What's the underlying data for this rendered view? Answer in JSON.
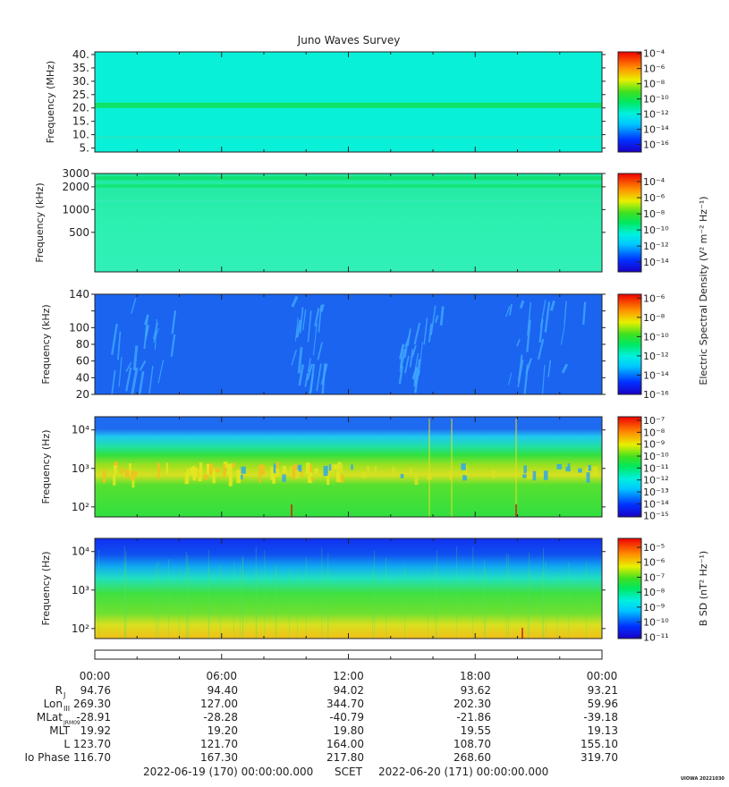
{
  "figure": {
    "title": "Juno Waves Survey",
    "time_ticks": [
      "00:00",
      "06:00",
      "12:00",
      "18:00",
      "00:00"
    ],
    "ephemeris": {
      "rows": [
        {
          "label": "R",
          "sub": "J",
          "values": [
            "94.76",
            "94.40",
            "94.02",
            "93.62",
            "93.21"
          ]
        },
        {
          "label": "Lon",
          "sub": "III",
          "values": [
            "269.30",
            "127.00",
            "344.70",
            "202.30",
            "59.96"
          ]
        },
        {
          "label": "MLat",
          "sub": "JRM09",
          "values": [
            "-28.91",
            "-28.28",
            "-40.79",
            "-21.86",
            "-39.18"
          ]
        },
        {
          "label": "MLT",
          "sub": "",
          "values": [
            "19.92",
            "19.20",
            "19.80",
            "19.55",
            "19.13"
          ]
        },
        {
          "label": "L",
          "sub": "",
          "values": [
            "123.70",
            "121.70",
            "164.00",
            "108.70",
            "155.10"
          ]
        },
        {
          "label": "Io Phase",
          "sub": "",
          "values": [
            "116.70",
            "167.30",
            "217.80",
            "268.60",
            "319.70"
          ]
        }
      ]
    },
    "footer": {
      "start": "2022-06-19 (170) 00:00:00.000",
      "frame": "SCET",
      "end": "2022-06-20 (171) 00:00:00.000"
    },
    "stamp": "UIOWA 20221030",
    "shared_colorbar_label": "Electric Spectral Density (V² m⁻² Hz⁻¹)"
  },
  "chart_data": [
    {
      "type": "heatmap",
      "title": "Juno Waves Survey",
      "ylabel": "Frequency (MHz)",
      "y_scale": "linear",
      "ylim": [
        3.5,
        41
      ],
      "y_ticks": [
        {
          "v": 5,
          "t": "5."
        },
        {
          "v": 10,
          "t": "10."
        },
        {
          "v": 15,
          "t": "15."
        },
        {
          "v": 20,
          "t": "20."
        },
        {
          "v": 25,
          "t": "25."
        },
        {
          "v": 30,
          "t": "30."
        },
        {
          "v": 35,
          "t": "35."
        },
        {
          "v": 40,
          "t": "40."
        }
      ],
      "base_color": "#08f0d8",
      "features": [
        {
          "kind": "band",
          "y": 21.0,
          "width": 0.35,
          "color": "#10e060"
        },
        {
          "kind": "band",
          "y": 9.0,
          "width": 0.12,
          "color": "#20e8c8"
        }
      ],
      "colorbar": {
        "exponents": [
          -4,
          -6,
          -8,
          -10,
          -12,
          -14,
          -16
        ],
        "range": [
          -17,
          -3.8
        ],
        "label": ""
      }
    },
    {
      "type": "heatmap",
      "ylabel": "Frequency (kHz)",
      "y_scale": "log",
      "ylim": [
        150,
        3000
      ],
      "y_ticks": [
        {
          "v": 500,
          "t": "500"
        },
        {
          "v": 1000,
          "t": "1000"
        },
        {
          "v": 2000,
          "t": "2000"
        },
        {
          "v": 3000,
          "t": "3000"
        }
      ],
      "base_color": "#28f0a8",
      "features": [
        {
          "kind": "band",
          "y": 2600,
          "width": 0.25,
          "color": "#10e070"
        },
        {
          "kind": "band",
          "y": 2050,
          "width": 0.2,
          "color": "#14e670"
        },
        {
          "kind": "band",
          "y": 1300,
          "width": 0.15,
          "color": "#30ecb0"
        }
      ],
      "colorbar": {
        "exponents": [
          -4,
          -6,
          -8,
          -10,
          -12,
          -14
        ],
        "range": [
          -15.2,
          -3
        ],
        "label": "Electric Spectral Density (V² m⁻² Hz⁻¹)"
      }
    },
    {
      "type": "heatmap",
      "ylabel": "Frequency (kHz)",
      "y_scale": "linear",
      "ylim": [
        20,
        140
      ],
      "y_ticks": [
        {
          "v": 20,
          "t": "20"
        },
        {
          "v": 40,
          "t": "40"
        },
        {
          "v": 60,
          "t": "60"
        },
        {
          "v": 80,
          "t": "80"
        },
        {
          "v": 100,
          "t": "100"
        },
        {
          "v": 120,
          "t": ""
        },
        {
          "v": 140,
          "t": "140"
        }
      ],
      "base_color": "#1a64f0",
      "features": [
        {
          "kind": "streaks",
          "t_ranges": [
            [
              0.0,
              4.0
            ],
            [
              9.5,
              11.0
            ],
            [
              14.5,
              16.5
            ],
            [
              19.5,
              23.5
            ]
          ],
          "color": "#40a8ff"
        }
      ],
      "colorbar": {
        "exponents": [
          -6,
          -8,
          -10,
          -12,
          -14,
          -16
        ],
        "range": [
          -16,
          -5.6
        ],
        "label": ""
      }
    },
    {
      "type": "heatmap",
      "ylabel": "Frequency (Hz)",
      "y_scale": "log",
      "ylim": [
        55,
        22000
      ],
      "y_ticks": [
        {
          "v": 100,
          "t": "10²"
        },
        {
          "v": 1000,
          "t": "10³"
        },
        {
          "v": 10000,
          "t": "10⁴"
        }
      ],
      "base_color": "#30e040",
      "features": [
        {
          "kind": "band",
          "y_low": 3000,
          "y_high": 22000,
          "color": "#1e78f0"
        },
        {
          "kind": "band",
          "y_low": 1500,
          "y_high": 3000,
          "color": "#20d8e8"
        },
        {
          "kind": "band",
          "y_low": 500,
          "y_high": 1500,
          "color": "#c8e020"
        }
      ],
      "colorbar": {
        "exponents": [
          -7,
          -8,
          -9,
          -10,
          -11,
          -12,
          -13,
          -14,
          -15
        ],
        "range": [
          -15.1,
          -6.7
        ],
        "label": ""
      }
    },
    {
      "type": "heatmap",
      "ylabel": "Frequency (Hz)",
      "y_scale": "log",
      "ylim": [
        55,
        22000
      ],
      "y_ticks": [
        {
          "v": 100,
          "t": "10²"
        },
        {
          "v": 1000,
          "t": "10³"
        },
        {
          "v": 10000,
          "t": "10⁴"
        }
      ],
      "base_color": "#40e040",
      "features": [
        {
          "kind": "band",
          "y_low": 3000,
          "y_high": 22000,
          "color": "#1040f0"
        },
        {
          "kind": "band",
          "y_low": 55,
          "y_high": 160,
          "color": "#f0d820"
        }
      ],
      "colorbar": {
        "exponents": [
          -5,
          -6,
          -7,
          -8,
          -9,
          -10,
          -11
        ],
        "range": [
          -11.1,
          -4.4
        ],
        "label": "B SD (nT² Hz⁻¹)"
      }
    }
  ]
}
